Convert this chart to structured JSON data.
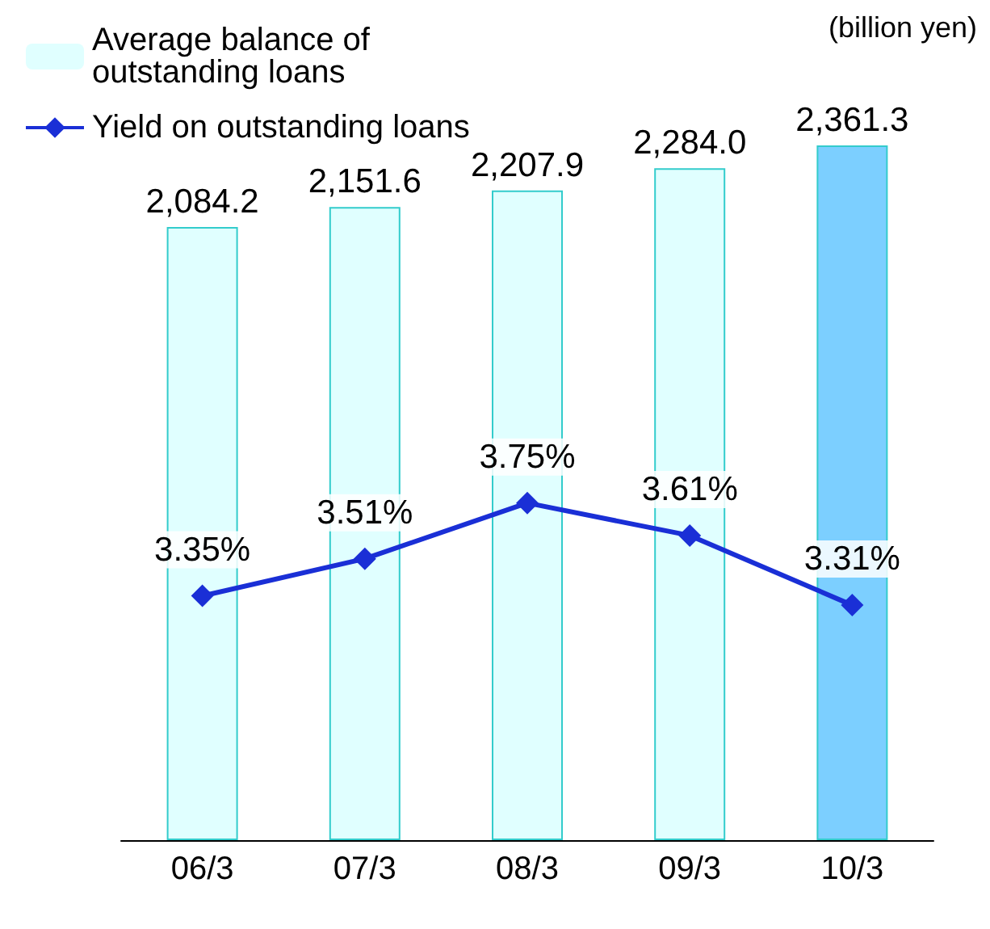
{
  "chart_data": {
    "type": "bar",
    "categories": [
      "06/3",
      "07/3",
      "08/3",
      "09/3",
      "10/3"
    ],
    "series": [
      {
        "name": "Average balance of outstanding loans",
        "color": "#e0ffff",
        "colors": [
          "#e0ffff",
          "#e0ffff",
          "#e0ffff",
          "#e0ffff",
          "#7ccfff"
        ],
        "values": [
          2084.2,
          2151.6,
          2207.9,
          2284.0,
          2361.3
        ],
        "value_labels": [
          "2,084.2",
          "2,151.6",
          "2,207.9",
          "2,284.0",
          "2,361.3"
        ]
      },
      {
        "name": "Yield on outstanding loans",
        "type": "line",
        "axis": "y2",
        "color": "#1a2fd6",
        "marker": "diamond",
        "values": [
          3.35,
          3.51,
          3.75,
          3.61,
          3.31
        ],
        "value_labels": [
          "3.35%",
          "3.51%",
          "3.75%",
          "3.61%",
          "3.31%"
        ]
      }
    ],
    "annotations": [
      "(billion yen)"
    ],
    "legend": "top left",
    "grid": false,
    "tick_labels": "x"
  }
}
